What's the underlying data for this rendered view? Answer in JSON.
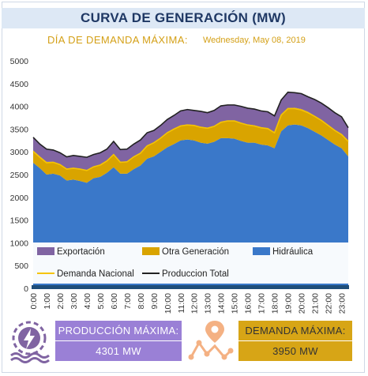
{
  "header": {
    "title": "CURVA DE GENERACIÓN (MW)",
    "subtitle": "DÍA DE DEMANDA MÁXIMA:",
    "date": "Wednesday, May 08, 2019"
  },
  "kpis": {
    "produccion_label": "PRODUCCIÓN MÁXIMA:",
    "produccion_value": "4301 MW",
    "demanda_label": "DEMANDA MÁXIMA:",
    "demanda_value": "3950 MW"
  },
  "icons": {
    "production": "power-plant-lightning-icon",
    "demand": "location-graph-icon"
  },
  "colors": {
    "hidraulica": "#3a78c9",
    "otra_generacion": "#d9a400",
    "exportacion": "#8064a2",
    "demanda_nacional": "#f5c400",
    "produccion_total": "#222222",
    "produccion_box": "#9a80d6",
    "demanda_box": "#d7a516"
  },
  "chart_data": {
    "type": "area",
    "ylim": [
      0,
      5000
    ],
    "yticks": [
      "0",
      "500",
      "1000",
      "1500",
      "2000",
      "2500",
      "3000",
      "3500",
      "4000",
      "4500",
      "5000"
    ],
    "grid": false,
    "legend_position": "bottom-inside",
    "categories": [
      "0:00",
      "0:30",
      "1:00",
      "1:30",
      "2:00",
      "2:30",
      "3:00",
      "3:30",
      "4:00",
      "4:30",
      "5:00",
      "5:30",
      "6:00",
      "6:30",
      "7:00",
      "7:30",
      "8:00",
      "8:30",
      "9:00",
      "9:30",
      "10:00",
      "10:30",
      "11:00",
      "11:30",
      "12:00",
      "12:30",
      "13:00",
      "13:30",
      "14:00",
      "14:30",
      "15:00",
      "15:30",
      "16:00",
      "16:30",
      "17:00",
      "17:30",
      "18:00",
      "18:30",
      "19:00",
      "19:30",
      "20:00",
      "20:30",
      "21:00",
      "21:30",
      "22:00",
      "22:30",
      "23:00",
      "23:30"
    ],
    "xtick_labels": [
      "0:00",
      "1:00",
      "2:00",
      "3:00",
      "4:00",
      "5:00",
      "6:00",
      "7:00",
      "8:00",
      "9:00",
      "10:00",
      "11:00",
      "12:00",
      "13:00",
      "14:00",
      "15:00",
      "16:00",
      "17:00",
      "18:00",
      "19:00",
      "20:00",
      "21:00",
      "22:00",
      "23:00"
    ],
    "series": [
      {
        "name": "Hidráulica",
        "kind": "stack",
        "values": [
          2760,
          2640,
          2500,
          2520,
          2480,
          2370,
          2390,
          2360,
          2320,
          2420,
          2450,
          2540,
          2660,
          2520,
          2520,
          2620,
          2700,
          2850,
          2900,
          3000,
          3100,
          3170,
          3250,
          3270,
          3250,
          3200,
          3180,
          3220,
          3300,
          3300,
          3290,
          3240,
          3200,
          3200,
          3160,
          3140,
          3080,
          3450,
          3580,
          3600,
          3580,
          3520,
          3440,
          3360,
          3260,
          3160,
          3080,
          2900
        ]
      },
      {
        "name": "Otra Generación",
        "kind": "stack",
        "values": [
          270,
          260,
          280,
          260,
          250,
          260,
          260,
          270,
          280,
          260,
          270,
          270,
          290,
          260,
          270,
          280,
          280,
          290,
          310,
          310,
          330,
          340,
          330,
          330,
          340,
          350,
          350,
          350,
          360,
          390,
          400,
          400,
          400,
          380,
          380,
          380,
          350,
          370,
          380,
          370,
          360,
          360,
          350,
          340,
          330,
          320,
          310,
          340
        ]
      },
      {
        "name": "Exportacion",
        "kind": "stack",
        "values": [
          290,
          270,
          280,
          260,
          250,
          260,
          270,
          270,
          280,
          260,
          260,
          250,
          280,
          270,
          270,
          270,
          280,
          280,
          260,
          270,
          280,
          290,
          320,
          330,
          320,
          340,
          330,
          340,
          350,
          340,
          340,
          360,
          360,
          360,
          360,
          360,
          360,
          320,
          350,
          330,
          340,
          330,
          360,
          370,
          380,
          380,
          380,
          290
        ]
      },
      {
        "name": "Demanda Nacional",
        "kind": "line",
        "values": [
          3010,
          2880,
          2760,
          2770,
          2720,
          2620,
          2640,
          2620,
          2590,
          2670,
          2710,
          2800,
          2940,
          2770,
          2780,
          2890,
          2970,
          3130,
          3200,
          3300,
          3420,
          3500,
          3570,
          3590,
          3580,
          3540,
          3520,
          3560,
          3650,
          3680,
          3680,
          3630,
          3590,
          3570,
          3530,
          3510,
          3420,
          3810,
          3950,
          3950,
          3920,
          3860,
          3780,
          3690,
          3580,
          3470,
          3380,
          3230
        ]
      }
    ],
    "legend": [
      "Exportación",
      "Otra Generación",
      "Hidráulica",
      "Demanda Nacional",
      "Produccion Total"
    ]
  }
}
